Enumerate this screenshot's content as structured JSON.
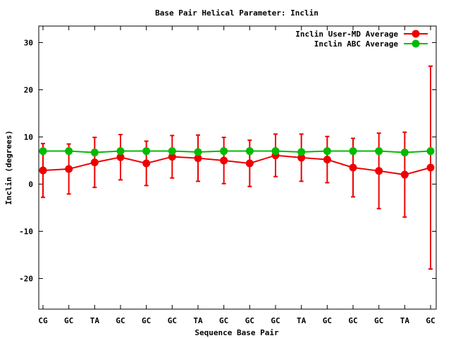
{
  "chart_data": {
    "type": "line",
    "title": "Base Pair Helical Parameter: Inclin",
    "xlabel": "Sequence Base Pair",
    "ylabel": "Inclin (degrees)",
    "categories": [
      "CG",
      "GC",
      "TA",
      "GC",
      "GC",
      "GC",
      "TA",
      "GC",
      "GC",
      "GC",
      "TA",
      "GC",
      "GC",
      "GC",
      "TA",
      "GC"
    ],
    "ylim": [
      -26.5,
      33.5
    ],
    "yticks": [
      -20,
      -10,
      0,
      10,
      20,
      30
    ],
    "legend_position": "top-right",
    "grid": false,
    "series": [
      {
        "name": "Inclin User-MD Average",
        "color": "#ee0000",
        "values": [
          2.9,
          3.2,
          4.6,
          5.7,
          4.4,
          5.8,
          5.5,
          5.0,
          4.4,
          6.1,
          5.6,
          5.2,
          3.5,
          2.8,
          2.0,
          3.5
        ],
        "error": [
          5.7,
          5.3,
          5.3,
          4.8,
          4.7,
          4.5,
          4.9,
          4.9,
          4.9,
          4.5,
          5.0,
          4.9,
          6.2,
          8.0,
          9.0,
          21.5
        ]
      },
      {
        "name": "Inclin ABC Average",
        "color": "#00bb00",
        "values": [
          7.0,
          7.0,
          6.7,
          7.0,
          7.0,
          7.0,
          6.8,
          7.0,
          7.0,
          7.0,
          6.8,
          7.0,
          7.0,
          7.0,
          6.7,
          7.0
        ]
      }
    ]
  }
}
